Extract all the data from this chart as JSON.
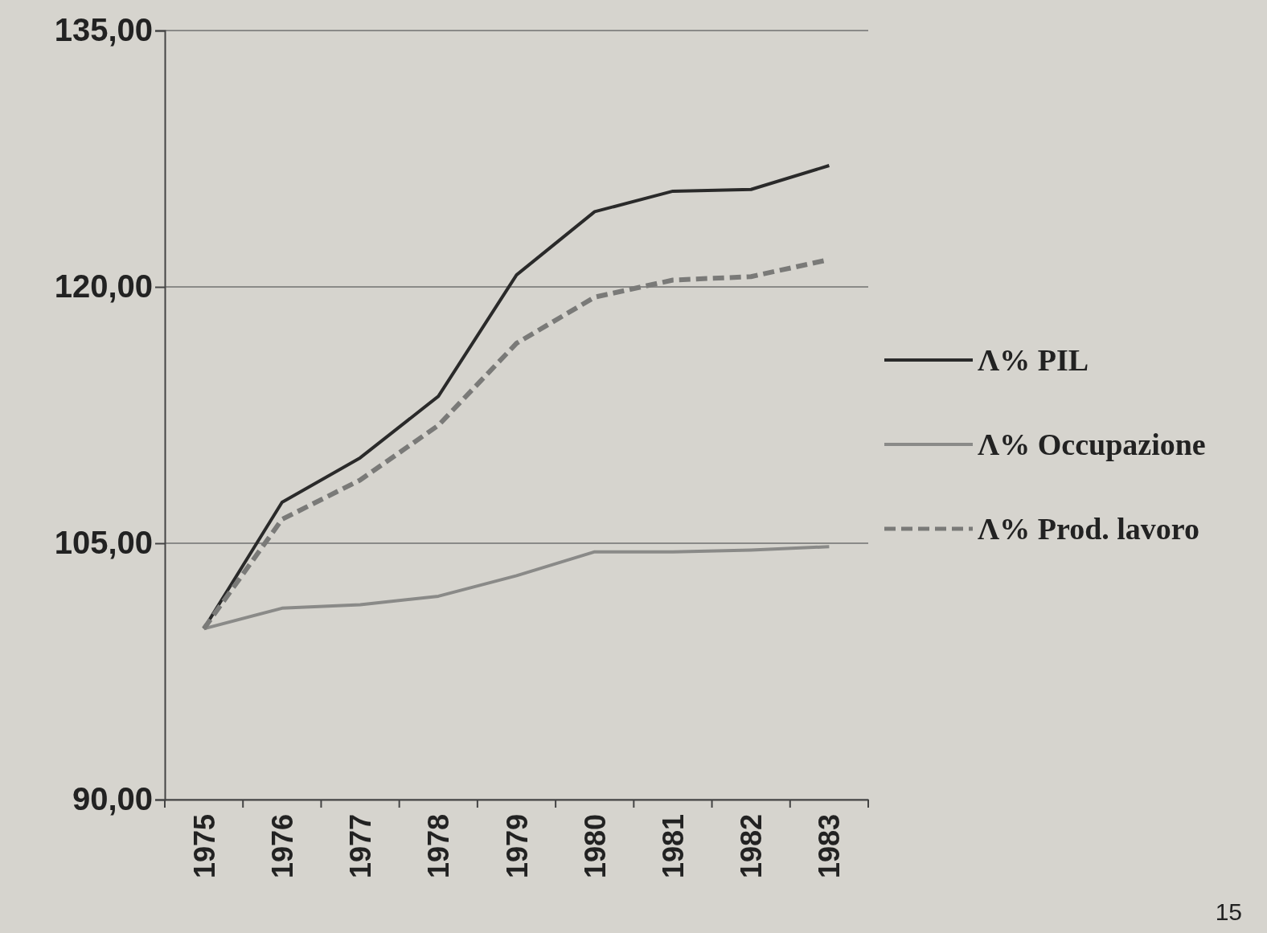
{
  "chart_data": {
    "type": "line",
    "categories": [
      "1975",
      "1976",
      "1977",
      "1978",
      "1979",
      "1980",
      "1981",
      "1982",
      "1983"
    ],
    "series": [
      {
        "name": "Λ% PIL",
        "color": "#2a2a2a",
        "line_style": "solid",
        "values": [
          100,
          107.4,
          110,
          113.6,
          120.7,
          124.4,
          125.6,
          125.7,
          127.1
        ]
      },
      {
        "name": "Λ% Occupazione",
        "color": "#8a8a88",
        "line_style": "solid",
        "values": [
          100,
          101.2,
          101.4,
          101.9,
          103.1,
          104.5,
          104.5,
          104.6,
          104.8
        ]
      },
      {
        "name": "Λ% Prod. lavoro",
        "color": "#7a7a78",
        "line_style": "dashed",
        "values": [
          100,
          106.4,
          108.7,
          111.9,
          116.7,
          119.4,
          120.4,
          120.6,
          121.6
        ]
      }
    ],
    "ylim": [
      90,
      135
    ],
    "yticks": [
      {
        "value": 90,
        "label": "90,00"
      },
      {
        "value": 105,
        "label": "105,00"
      },
      {
        "value": 120,
        "label": "120,00"
      },
      {
        "value": 135,
        "label": "135,00"
      }
    ],
    "grid": "y",
    "legend": "right",
    "annotations": [
      "15"
    ]
  }
}
